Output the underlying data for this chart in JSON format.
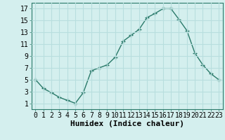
{
  "x": [
    0,
    1,
    2,
    3,
    4,
    5,
    6,
    7,
    8,
    9,
    10,
    11,
    12,
    13,
    14,
    15,
    16,
    17,
    18,
    19,
    20,
    21,
    22,
    23
  ],
  "y": [
    5.0,
    3.5,
    2.8,
    2.0,
    1.5,
    1.0,
    2.8,
    6.5,
    7.0,
    7.5,
    8.8,
    11.5,
    12.5,
    13.5,
    15.5,
    16.2,
    17.0,
    17.0,
    15.2,
    13.3,
    9.5,
    7.5,
    6.0,
    5.0
  ],
  "xlabel": "Humidex (Indice chaleur)",
  "xlim": [
    -0.5,
    23.5
  ],
  "ylim": [
    0,
    18
  ],
  "yticks": [
    1,
    3,
    5,
    7,
    9,
    11,
    13,
    15,
    17
  ],
  "xticks": [
    0,
    1,
    2,
    3,
    4,
    5,
    6,
    7,
    8,
    9,
    10,
    11,
    12,
    13,
    14,
    15,
    16,
    17,
    18,
    19,
    20,
    21,
    22,
    23
  ],
  "line_color": "#2a7a6a",
  "marker_color": "#2a7a6a",
  "bg_color": "#d4efee",
  "grid_color": "#b8dede",
  "xlabel_fontsize": 8,
  "tick_fontsize": 7
}
